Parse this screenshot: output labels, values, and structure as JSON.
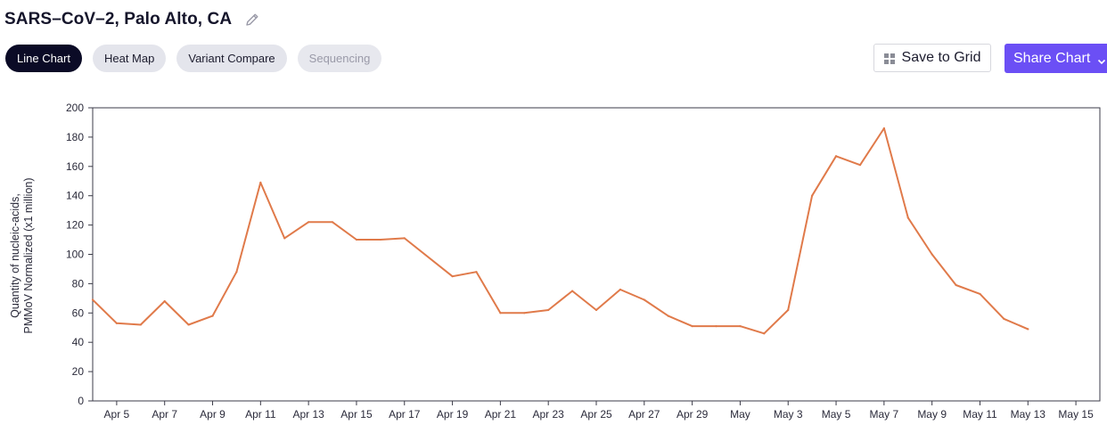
{
  "page": {
    "title": "SARS–CoV–2, Palo Alto, CA"
  },
  "tabs": [
    {
      "label": "Line Chart",
      "state": "active"
    },
    {
      "label": "Heat Map",
      "state": "normal"
    },
    {
      "label": "Variant Compare",
      "state": "normal"
    },
    {
      "label": "Sequencing",
      "state": "disabled"
    }
  ],
  "actions": {
    "save_label": "Save to Grid",
    "share_label": "Share Chart"
  },
  "colors": {
    "accent": "#6b4ff5",
    "active_tab": "#0b0b26",
    "line": "#e07a4a"
  },
  "chart_data": {
    "type": "line",
    "title": "",
    "xlabel": "",
    "ylabel_lines": [
      "Quantity of nucleic-acids,",
      "PMMoV Normalized (x1 million)"
    ],
    "ylim": [
      0,
      200
    ],
    "yticks": [
      0,
      20,
      40,
      60,
      80,
      100,
      120,
      140,
      160,
      180,
      200
    ],
    "xlim": [
      "2024-04-04",
      "2024-05-16"
    ],
    "xticks": [
      {
        "date": "2024-04-05",
        "label": "Apr 5"
      },
      {
        "date": "2024-04-07",
        "label": "Apr 7"
      },
      {
        "date": "2024-04-09",
        "label": "Apr 9"
      },
      {
        "date": "2024-04-11",
        "label": "Apr 11"
      },
      {
        "date": "2024-04-13",
        "label": "Apr 13"
      },
      {
        "date": "2024-04-15",
        "label": "Apr 15"
      },
      {
        "date": "2024-04-17",
        "label": "Apr 17"
      },
      {
        "date": "2024-04-19",
        "label": "Apr 19"
      },
      {
        "date": "2024-04-21",
        "label": "Apr 21"
      },
      {
        "date": "2024-04-23",
        "label": "Apr 23"
      },
      {
        "date": "2024-04-25",
        "label": "Apr 25"
      },
      {
        "date": "2024-04-27",
        "label": "Apr 27"
      },
      {
        "date": "2024-04-29",
        "label": "Apr 29"
      },
      {
        "date": "2024-05-01",
        "label": "May"
      },
      {
        "date": "2024-05-03",
        "label": "May 3"
      },
      {
        "date": "2024-05-05",
        "label": "May 5"
      },
      {
        "date": "2024-05-07",
        "label": "May 7"
      },
      {
        "date": "2024-05-09",
        "label": "May 9"
      },
      {
        "date": "2024-05-11",
        "label": "May 11"
      },
      {
        "date": "2024-05-13",
        "label": "May 13"
      },
      {
        "date": "2024-05-15",
        "label": "May 15"
      }
    ],
    "grid": false,
    "series": [
      {
        "color": "#e07a4a",
        "points": [
          {
            "x": "2024-04-04",
            "y": 69
          },
          {
            "x": "2024-04-05",
            "y": 53
          },
          {
            "x": "2024-04-06",
            "y": 52
          },
          {
            "x": "2024-04-07",
            "y": 68
          },
          {
            "x": "2024-04-08",
            "y": 52
          },
          {
            "x": "2024-04-09",
            "y": 58
          },
          {
            "x": "2024-04-10",
            "y": 88
          },
          {
            "x": "2024-04-11",
            "y": 149
          },
          {
            "x": "2024-04-12",
            "y": 111
          },
          {
            "x": "2024-04-13",
            "y": 122
          },
          {
            "x": "2024-04-14",
            "y": 122
          },
          {
            "x": "2024-04-15",
            "y": 110
          },
          {
            "x": "2024-04-16",
            "y": 110
          },
          {
            "x": "2024-04-17",
            "y": 111
          },
          {
            "x": "2024-04-19",
            "y": 85
          },
          {
            "x": "2024-04-20",
            "y": 88
          },
          {
            "x": "2024-04-21",
            "y": 60
          },
          {
            "x": "2024-04-22",
            "y": 60
          },
          {
            "x": "2024-04-23",
            "y": 62
          },
          {
            "x": "2024-04-24",
            "y": 75
          },
          {
            "x": "2024-04-25",
            "y": 62
          },
          {
            "x": "2024-04-26",
            "y": 76
          },
          {
            "x": "2024-04-27",
            "y": 69
          },
          {
            "x": "2024-04-28",
            "y": 58
          },
          {
            "x": "2024-04-29",
            "y": 51
          },
          {
            "x": "2024-04-30",
            "y": 51
          },
          {
            "x": "2024-05-01",
            "y": 51
          },
          {
            "x": "2024-05-02",
            "y": 46
          },
          {
            "x": "2024-05-03",
            "y": 62
          },
          {
            "x": "2024-05-04",
            "y": 140
          },
          {
            "x": "2024-05-05",
            "y": 167
          },
          {
            "x": "2024-05-06",
            "y": 161
          },
          {
            "x": "2024-05-07",
            "y": 186
          },
          {
            "x": "2024-05-08",
            "y": 125
          },
          {
            "x": "2024-05-09",
            "y": 100
          },
          {
            "x": "2024-05-10",
            "y": 79
          },
          {
            "x": "2024-05-11",
            "y": 73
          },
          {
            "x": "2024-05-12",
            "y": 56
          },
          {
            "x": "2024-05-13",
            "y": 49
          }
        ]
      }
    ]
  }
}
